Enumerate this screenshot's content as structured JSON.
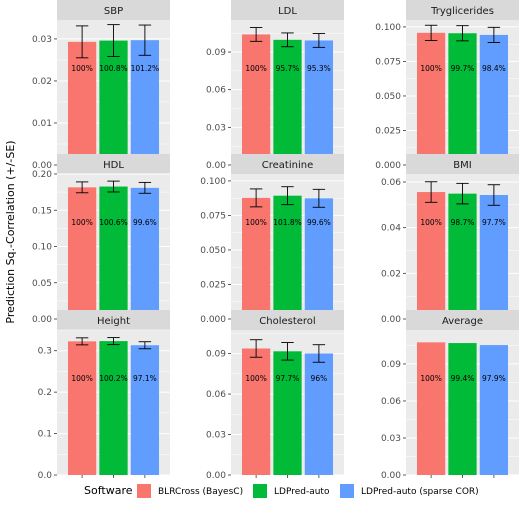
{
  "ylabel": "Prediction Sq.-Correlation (+/-SE)",
  "legend": {
    "title": "Software",
    "entries": [
      {
        "name": "BLRCross (BayesC)",
        "color": "#F8766D"
      },
      {
        "name": "LDPred-auto",
        "color": "#00BA38"
      },
      {
        "name": "LDPred-auto (sparse COR)",
        "color": "#619CFF"
      }
    ]
  },
  "chart_data": [
    {
      "type": "bar",
      "title": "SBP",
      "categories": [
        "BLRCross (BayesC)",
        "LDPred-auto",
        "LDPred-auto (sparse COR)"
      ],
      "values": [
        0.0293,
        0.0296,
        0.0297
      ],
      "errors": [
        0.0038,
        0.0038,
        0.0036
      ],
      "labels": [
        "100%",
        "100.8%",
        "101.2%"
      ],
      "ylim": [
        0,
        0.0345
      ],
      "ticks": [
        0.0,
        0.01,
        0.02,
        0.03
      ],
      "tick_labels": [
        "0.00",
        "0.01",
        "0.02",
        "0.03"
      ]
    },
    {
      "type": "bar",
      "title": "LDL",
      "categories": [
        "BLRCross (BayesC)",
        "LDPred-auto",
        "LDPred-auto (sparse COR)"
      ],
      "values": [
        0.104,
        0.0997,
        0.0992
      ],
      "errors": [
        0.0055,
        0.0055,
        0.0055
      ],
      "labels": [
        "100%",
        "95.7%",
        "95.3%"
      ],
      "ylim": [
        0,
        0.1155
      ],
      "ticks": [
        0.0,
        0.03,
        0.06,
        0.09
      ],
      "tick_labels": [
        "0.00",
        "0.03",
        "0.06",
        "0.09"
      ]
    },
    {
      "type": "bar",
      "title": "Tryglicerides",
      "categories": [
        "BLRCross (BayesC)",
        "LDPred-auto",
        "LDPred-auto (sparse COR)"
      ],
      "values": [
        0.0957,
        0.0954,
        0.0942
      ],
      "errors": [
        0.0055,
        0.0055,
        0.0055
      ],
      "labels": [
        "100%",
        "99.7%",
        "98.4%"
      ],
      "ylim": [
        0,
        0.105
      ],
      "ticks": [
        0.0,
        0.025,
        0.05,
        0.075,
        0.1
      ],
      "tick_labels": [
        "0.000",
        "0.025",
        "0.050",
        "0.075",
        "0.100"
      ]
    },
    {
      "type": "bar",
      "title": "HDL",
      "categories": [
        "BLRCross (BayesC)",
        "LDPred-auto",
        "LDPred-auto (sparse COR)"
      ],
      "values": [
        0.1816,
        0.1827,
        0.1809
      ],
      "errors": [
        0.0075,
        0.0075,
        0.0075
      ],
      "labels": [
        "100%",
        "100.6%",
        "99.6%"
      ],
      "ylim": [
        0,
        0.2
      ],
      "ticks": [
        0.0,
        0.05,
        0.1,
        0.15,
        0.2
      ],
      "tick_labels": [
        "0.00",
        "0.05",
        "0.10",
        "0.15",
        "0.20"
      ]
    },
    {
      "type": "bar",
      "title": "Creatinine",
      "categories": [
        "BLRCross (BayesC)",
        "LDPred-auto",
        "LDPred-auto (sparse COR)"
      ],
      "values": [
        0.0877,
        0.0893,
        0.0874
      ],
      "errors": [
        0.0065,
        0.0065,
        0.0065
      ],
      "labels": [
        "100%",
        "101.8%",
        "99.6%"
      ],
      "ylim": [
        0,
        0.105
      ],
      "ticks": [
        0.0,
        0.025,
        0.05,
        0.075,
        0.1
      ],
      "tick_labels": [
        "0.000",
        "0.025",
        "0.050",
        "0.075",
        "0.100"
      ]
    },
    {
      "type": "bar",
      "title": "BMI",
      "categories": [
        "BLRCross (BayesC)",
        "LDPred-auto",
        "LDPred-auto (sparse COR)"
      ],
      "values": [
        0.0556,
        0.0549,
        0.0543
      ],
      "errors": [
        0.0045,
        0.0045,
        0.0045
      ],
      "labels": [
        "100%",
        "98.7%",
        "97.7%"
      ],
      "ylim": [
        0,
        0.0635
      ],
      "ticks": [
        0.0,
        0.02,
        0.04,
        0.06
      ],
      "tick_labels": [
        "0.00",
        "0.02",
        "0.04",
        "0.06"
      ]
    },
    {
      "type": "bar",
      "title": "Height",
      "categories": [
        "BLRCross (BayesC)",
        "LDPred-auto",
        "LDPred-auto (sparse COR)"
      ],
      "values": [
        0.3226,
        0.3232,
        0.3132
      ],
      "errors": [
        0.0085,
        0.0085,
        0.0085
      ],
      "labels": [
        "100%",
        "100.2%",
        "97.1%"
      ],
      "ylim": [
        0,
        0.35
      ],
      "ticks": [
        0.0,
        0.1,
        0.2,
        0.3
      ],
      "tick_labels": [
        "0.0",
        "0.1",
        "0.2",
        "0.3"
      ]
    },
    {
      "type": "bar",
      "title": "Cholesterol",
      "categories": [
        "BLRCross (BayesC)",
        "LDPred-auto",
        "LDPred-auto (sparse COR)"
      ],
      "values": [
        0.0938,
        0.0917,
        0.0901
      ],
      "errors": [
        0.0065,
        0.0065,
        0.0065
      ],
      "labels": [
        "100%",
        "97.7%",
        "96%"
      ],
      "ylim": [
        0,
        0.1075
      ],
      "ticks": [
        0.0,
        0.03,
        0.06,
        0.09
      ],
      "tick_labels": [
        "0.00",
        "0.03",
        "0.06",
        "0.09"
      ]
    },
    {
      "type": "bar",
      "title": "Average",
      "categories": [
        "BLRCross (BayesC)",
        "LDPred-auto",
        "LDPred-auto (sparse COR)"
      ],
      "values": [
        0.1075,
        0.1069,
        0.1053
      ],
      "errors": null,
      "labels": [
        "100%",
        "99.4%",
        "97.9%"
      ],
      "ylim": [
        0,
        0.1175
      ],
      "ticks": [
        0.0,
        0.03,
        0.06,
        0.09
      ],
      "tick_labels": [
        "0.00",
        "0.03",
        "0.06",
        "0.09"
      ]
    }
  ]
}
